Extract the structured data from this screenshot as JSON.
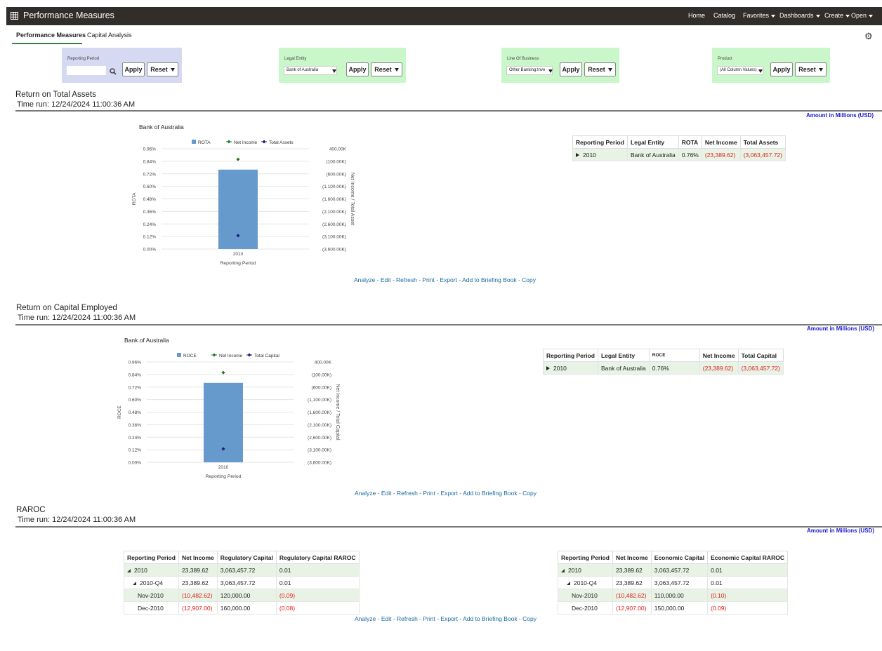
{
  "app": {
    "title": "Performance Measures",
    "nav": [
      "Home",
      "Catalog",
      "Favorites",
      "Dashboards",
      "Create",
      "Open"
    ]
  },
  "tabs": [
    {
      "label": "Performance Measures",
      "active": true
    },
    {
      "label": "Capital Analysis",
      "active": false
    }
  ],
  "prompts": [
    {
      "label": "Reporting Period",
      "value": "",
      "color": "#d5d9f2"
    },
    {
      "label": "Legal Entity",
      "value": "Bank of Australia",
      "color": "#c9f7c9"
    },
    {
      "label": "Line Of Business",
      "value": "Other Banking:Inve",
      "color": "#c9f7c9"
    },
    {
      "label": "Product",
      "value": "(All Column Values)",
      "color": "#c9f7c9"
    }
  ],
  "buttons": {
    "apply": "Apply",
    "reset": "Reset"
  },
  "units_note": "Amount in Millions (USD)",
  "links": [
    "Analyze",
    "Edit",
    "Refresh",
    "Print",
    "Export",
    "Add to Briefing Book",
    "Copy"
  ],
  "sections": {
    "rota": {
      "title": "Return on Total Assets",
      "time": "Time run: 12/24/2024 11:00:36 AM",
      "chart_title": "Bank of Australia",
      "legend": [
        "ROTA",
        "Net Income",
        "Total Assets"
      ],
      "y_label": "ROTA",
      "y2_label": "Net Income / Total Asset",
      "x_label": "Reporting Period",
      "y_ticks": [
        "0.96%",
        "0.84%",
        "0.72%",
        "0.60%",
        "0.48%",
        "0.36%",
        "0.24%",
        "0.12%",
        "0.00%"
      ],
      "y2_ticks": [
        "400.00K",
        "(100.00K)",
        "(600.00K)",
        "(1,100.00K)",
        "(1,600.00K)",
        "(2,100.00K)",
        "(2,600.00K)",
        "(3,100.00K)",
        "(3,600.00K)"
      ],
      "category": "2010",
      "table": {
        "headers": [
          "Reporting Period",
          "Legal Entity",
          "ROTA",
          "Net Income",
          "Total Assets"
        ],
        "row": [
          "2010",
          "Bank of Australia",
          "0.76%",
          "(23,389.62)",
          "(3,063,457.72)"
        ]
      }
    },
    "roce": {
      "title": "Return on Capital Employed",
      "time": "Time run: 12/24/2024 11:00:36 AM",
      "chart_title": "Bank of Australia",
      "legend": [
        "ROCE",
        "Net Income",
        "Total Capital"
      ],
      "y_label": "ROCE",
      "y2_label": "Net Income / Total Capital",
      "x_label": "Reporting Period",
      "y_ticks": [
        "0.96%",
        "0.84%",
        "0.72%",
        "0.60%",
        "0.48%",
        "0.36%",
        "0.24%",
        "0.12%",
        "0.00%"
      ],
      "y2_ticks": [
        "400.00K",
        "(100.00K)",
        "(600.00K)",
        "(1,100.00K)",
        "(1,600.00K)",
        "(2,100.00K)",
        "(2,600.00K)",
        "(3,100.00K)",
        "(3,600.00K)"
      ],
      "category": "2010",
      "table": {
        "headers": [
          "Reporting Period",
          "Legal Entity",
          "ROCE",
          "Net Income",
          "Total Capital"
        ],
        "row": [
          "2010",
          "Bank of Australia",
          "0.76%",
          "(23,389.62)",
          "(3,063,457.72)"
        ]
      }
    },
    "raroc": {
      "title": "RAROC",
      "time": "Time run: 12/24/2024 11:00:36 AM",
      "reg_table": {
        "headers": [
          "Reporting Period",
          "Net Income",
          "Regulatory Capital",
          "Regulatory Capital RAROC"
        ],
        "rows": [
          [
            "2010",
            "23,389.62",
            "3,063,457.72",
            "0.01"
          ],
          [
            "2010-Q4",
            "23,389.62",
            "3,063,457.72",
            "0.01"
          ],
          [
            "Nov-2010",
            "(10,482.62)",
            "120,000.00",
            "(0.09)"
          ],
          [
            "Dec-2010",
            "(12,907.00)",
            "160,000.00",
            "(0.08)"
          ]
        ]
      },
      "econ_table": {
        "headers": [
          "Reporting Period",
          "Net Income",
          "Economic Capital",
          "Economic Capital RAROC"
        ],
        "rows": [
          [
            "2010",
            "23,389.62",
            "3,063,457.72",
            "0.01"
          ],
          [
            "2010-Q4",
            "23,389.62",
            "3,063,457.72",
            "0.01"
          ],
          [
            "Nov-2010",
            "(10,482.62)",
            "110,000.00",
            "(0.10)"
          ],
          [
            "Dec-2010",
            "(12,907.00)",
            "150,000.00",
            "(0.09)"
          ]
        ]
      }
    }
  },
  "chart_data": [
    {
      "type": "bar",
      "title": "Bank of Australia",
      "categories": [
        "2010"
      ],
      "xlabel": "Reporting Period",
      "ylabel": "ROTA",
      "ylim": [
        0,
        0.96
      ],
      "y2label": "Net Income / Total Asset",
      "y2lim": [
        -3600000,
        400000
      ],
      "series": [
        {
          "name": "ROTA",
          "type": "bar",
          "axis": "y",
          "values": [
            0.76
          ],
          "color": "#6699cc"
        },
        {
          "name": "Net Income",
          "type": "point",
          "axis": "y2",
          "values": [
            -23389.62
          ],
          "color": "#1a7a1a"
        },
        {
          "name": "Total Assets",
          "type": "point",
          "axis": "y2",
          "values": [
            -3063457.72
          ],
          "color": "#1a1a80"
        }
      ]
    },
    {
      "type": "bar",
      "title": "Bank of Australia",
      "categories": [
        "2010"
      ],
      "xlabel": "Reporting Period",
      "ylabel": "ROCE",
      "ylim": [
        0,
        0.96
      ],
      "y2label": "Net Income / Total Capital",
      "y2lim": [
        -3600000,
        400000
      ],
      "series": [
        {
          "name": "ROCE",
          "type": "bar",
          "axis": "y",
          "values": [
            0.76
          ],
          "color": "#6699cc"
        },
        {
          "name": "Net Income",
          "type": "point",
          "axis": "y2",
          "values": [
            -23389.62
          ],
          "color": "#1a7a1a"
        },
        {
          "name": "Total Capital",
          "type": "point",
          "axis": "y2",
          "values": [
            -3063457.72
          ],
          "color": "#1a1a80"
        }
      ]
    }
  ]
}
